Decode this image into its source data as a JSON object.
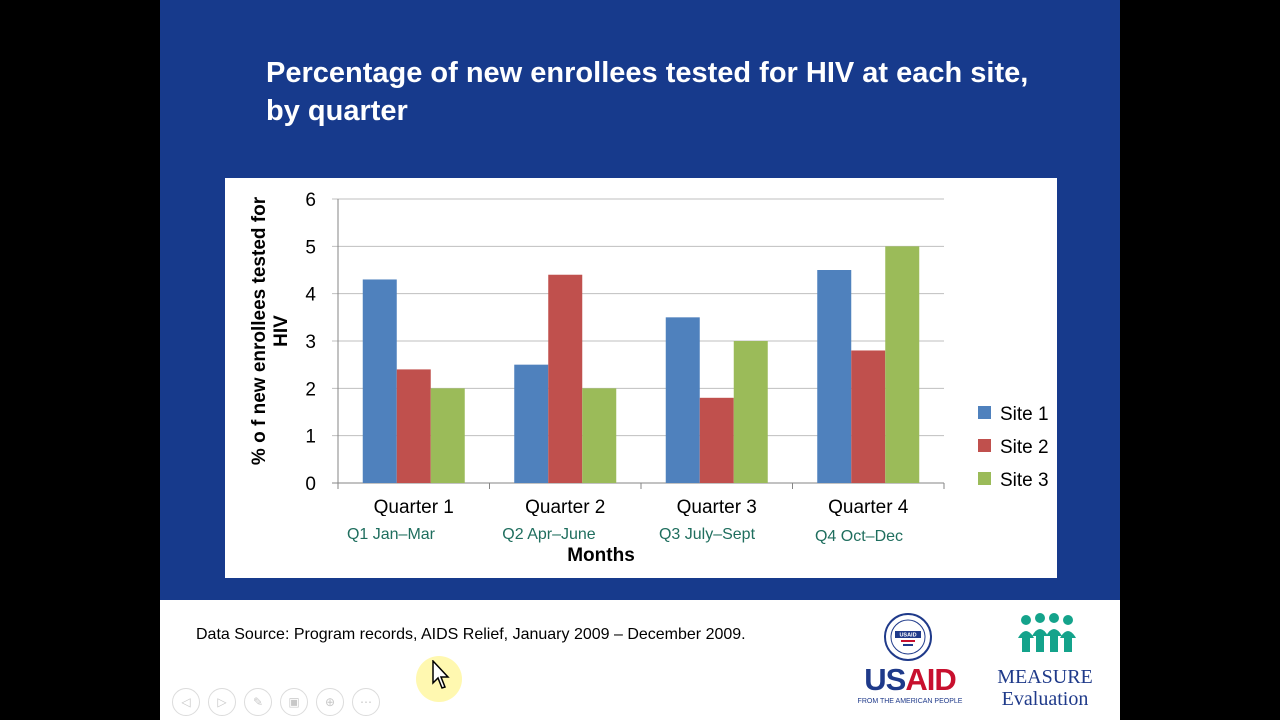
{
  "slide": {
    "title": "Percentage of new enrollees tested for HIV at each site, by quarter",
    "data_source": "Data Source: Program records, AIDS Relief, January 2009 – December 2009.",
    "colors": {
      "band": "#173a8c",
      "site1": "#4f81bd",
      "site2": "#c0504d",
      "site3": "#9bbb59"
    }
  },
  "chart_data": {
    "type": "bar",
    "title": "",
    "xlabel": "Months",
    "ylabel": "% o f new enrollees tested for HIV",
    "ylim": [
      0,
      6
    ],
    "yticks": [
      0,
      1,
      2,
      3,
      4,
      5,
      6
    ],
    "grid": true,
    "legend_position": "right",
    "categories": [
      "Quarter 1",
      "Quarter 2",
      "Quarter 3",
      "Quarter 4"
    ],
    "quarter_labels": [
      "Q1 Jan–Mar",
      "Q2 Apr–June",
      "Q3 July–Sept",
      "Q4 Oct–Dec"
    ],
    "series": [
      {
        "name": "Site 1",
        "values": [
          4.3,
          2.5,
          3.5,
          4.5
        ]
      },
      {
        "name": "Site 2",
        "values": [
          2.4,
          4.4,
          1.8,
          2.8
        ]
      },
      {
        "name": "Site 3",
        "values": [
          2.0,
          2.0,
          3.0,
          5.0
        ]
      }
    ]
  },
  "logos": {
    "usaid_left": "US",
    "usaid_right": "AID",
    "usaid_tagline": "FROM THE AMERICAN PEOPLE",
    "usaid_seal_text": "USAID",
    "measure_name": "MEASURE",
    "measure_sub": "Evaluation"
  },
  "player_controls": [
    {
      "name": "previous-slide-button",
      "icon": "chevron-left-icon",
      "glyph": "◁"
    },
    {
      "name": "next-slide-button",
      "icon": "chevron-right-icon",
      "glyph": "▷"
    },
    {
      "name": "pen-tool-button",
      "icon": "pen-icon",
      "glyph": "✎"
    },
    {
      "name": "slides-button",
      "icon": "slides-icon",
      "glyph": "▣"
    },
    {
      "name": "zoom-button",
      "icon": "magnifier-icon",
      "glyph": "⊕"
    },
    {
      "name": "more-options-button",
      "icon": "ellipsis-icon",
      "glyph": "⋯"
    }
  ]
}
